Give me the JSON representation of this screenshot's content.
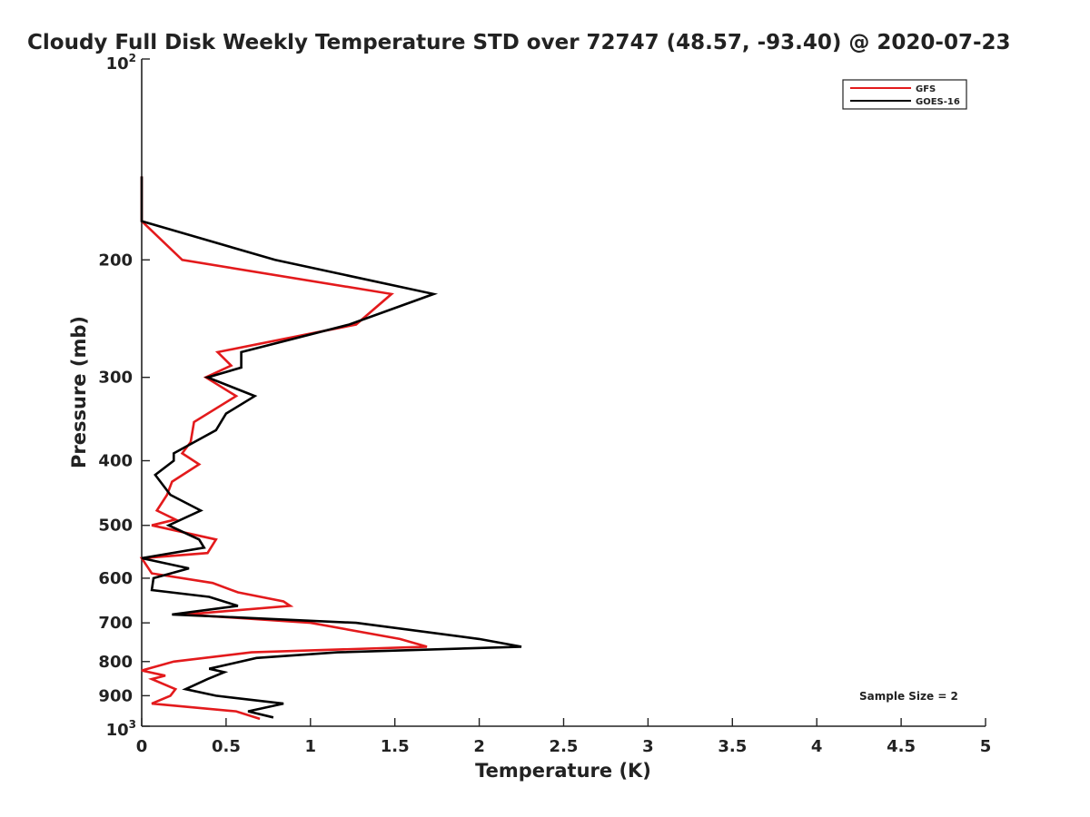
{
  "chart_data": {
    "type": "line",
    "title": "Cloudy Full Disk Weekly Temperature STD over 72747 (48.57, -93.40) @ 2020-07-23",
    "xlabel": "Temperature (K)",
    "ylabel": "Pressure (mb)",
    "xlim": [
      0,
      5
    ],
    "ylim": [
      1000,
      100
    ],
    "yscale": "log",
    "x_ticks": [
      "0",
      "0.5",
      "1",
      "1.5",
      "2",
      "2.5",
      "3",
      "3.5",
      "4",
      "4.5",
      "5"
    ],
    "y_ticks": [
      "200",
      "300",
      "400",
      "500",
      "600",
      "700",
      "800",
      "900"
    ],
    "y_top_tick": {
      "base": "10",
      "exp": "2"
    },
    "y_bottom_tick": {
      "base": "10",
      "exp": "3"
    },
    "legend_position": "top-right",
    "annotation": "Sample Size = 2",
    "series": [
      {
        "name": "GFS",
        "color": "#e31a1c",
        "points": [
          [
            0.0,
            150
          ],
          [
            0.0,
            175
          ],
          [
            0.24,
            200
          ],
          [
            1.48,
            225
          ],
          [
            1.27,
            250
          ],
          [
            0.45,
            275
          ],
          [
            0.53,
            288
          ],
          [
            0.38,
            300
          ],
          [
            0.56,
            320
          ],
          [
            0.31,
            350
          ],
          [
            0.29,
            375
          ],
          [
            0.24,
            390
          ],
          [
            0.34,
            405
          ],
          [
            0.18,
            430
          ],
          [
            0.15,
            450
          ],
          [
            0.09,
            475
          ],
          [
            0.2,
            490
          ],
          [
            0.06,
            500
          ],
          [
            0.44,
            525
          ],
          [
            0.39,
            550
          ],
          [
            0.0,
            560
          ],
          [
            0.06,
            590
          ],
          [
            0.42,
            610
          ],
          [
            0.57,
            630
          ],
          [
            0.84,
            650
          ],
          [
            0.88,
            660
          ],
          [
            0.26,
            680
          ],
          [
            1.0,
            700
          ],
          [
            1.53,
            740
          ],
          [
            1.69,
            760
          ],
          [
            0.65,
            775
          ],
          [
            0.19,
            800
          ],
          [
            0.0,
            825
          ],
          [
            0.14,
            840
          ],
          [
            0.06,
            850
          ],
          [
            0.2,
            880
          ],
          [
            0.17,
            900
          ],
          [
            0.06,
            925
          ],
          [
            0.56,
            950
          ],
          [
            0.7,
            975
          ]
        ]
      },
      {
        "name": "GOES-16",
        "color": "#000000",
        "points": [
          [
            0.0,
            150
          ],
          [
            0.0,
            175
          ],
          [
            0.79,
            200
          ],
          [
            1.73,
            225
          ],
          [
            1.23,
            250
          ],
          [
            0.59,
            275
          ],
          [
            0.59,
            290
          ],
          [
            0.39,
            300
          ],
          [
            0.67,
            320
          ],
          [
            0.5,
            340
          ],
          [
            0.44,
            360
          ],
          [
            0.19,
            390
          ],
          [
            0.19,
            400
          ],
          [
            0.08,
            420
          ],
          [
            0.17,
            450
          ],
          [
            0.35,
            475
          ],
          [
            0.16,
            500
          ],
          [
            0.34,
            525
          ],
          [
            0.37,
            540
          ],
          [
            0.0,
            560
          ],
          [
            0.28,
            580
          ],
          [
            0.07,
            600
          ],
          [
            0.06,
            625
          ],
          [
            0.4,
            640
          ],
          [
            0.57,
            660
          ],
          [
            0.18,
            680
          ],
          [
            1.27,
            700
          ],
          [
            2.0,
            740
          ],
          [
            2.25,
            760
          ],
          [
            1.16,
            775
          ],
          [
            0.68,
            790
          ],
          [
            0.4,
            820
          ],
          [
            0.49,
            830
          ],
          [
            0.39,
            850
          ],
          [
            0.26,
            880
          ],
          [
            0.44,
            900
          ],
          [
            0.84,
            925
          ],
          [
            0.63,
            950
          ],
          [
            0.78,
            970
          ]
        ]
      }
    ]
  }
}
